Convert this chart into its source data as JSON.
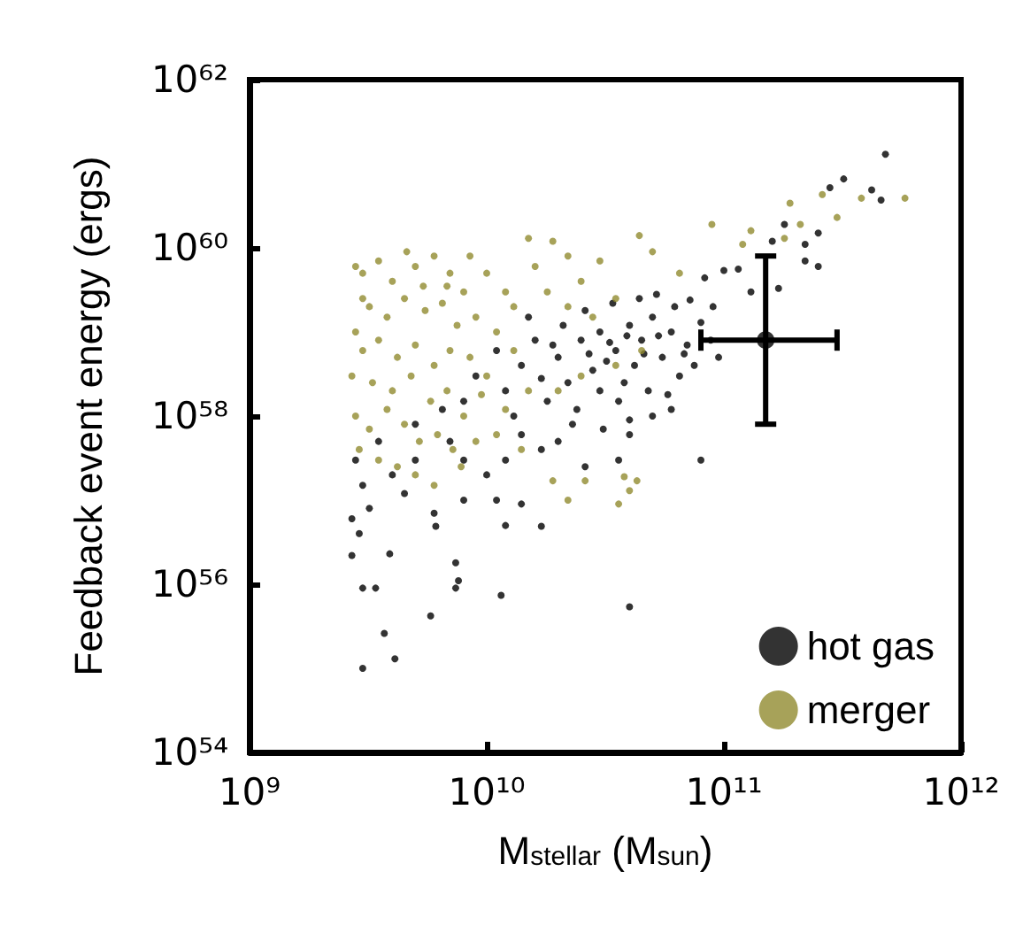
{
  "chart_data": {
    "type": "scatter",
    "xlabel": "M$_{stellar}$ (M$_{sun}$)",
    "ylabel": "Feedback event energy (ergs)",
    "log": "xy",
    "marker": "circle",
    "legend": "bottom right",
    "grid": false,
    "xlim": [
      1000000000.0,
      1000000000000.0
    ],
    "xticks": [
      {
        "value": 1000000000.0,
        "label": "10⁹"
      },
      {
        "value": 10000000000.0,
        "label": "10¹⁰"
      },
      {
        "value": 100000000000.0,
        "label": "10¹¹"
      },
      {
        "value": 1000000000000.0,
        "label": "10¹²"
      }
    ],
    "ylim": [
      1e+54,
      1e+62
    ],
    "yticks": [
      {
        "value": 1e+54,
        "label": "10⁵⁴"
      },
      {
        "value": 1e+56,
        "label": "10⁵⁶"
      },
      {
        "value": 1e+58,
        "label": "10⁵⁸"
      },
      {
        "value": 1e+60,
        "label": "10⁶⁰"
      },
      {
        "value": 1e+62,
        "label": "10⁶²"
      }
    ],
    "series": [
      {
        "name": "hot gas",
        "color": "#000000",
        "x": [
          480000000000.0,
          320000000000.0,
          420000000000.0,
          460000000000.0,
          280000000000.0,
          180000000000.0,
          220000000000.0,
          250000000000.0,
          250000000000.0,
          220000000000.0,
          160000000000.0,
          115000000000.0,
          100000000000.0,
          83000000000.0,
          170000000000.0,
          130000000000.0,
          90000000000.0,
          20000000000.0,
          25000000000.0,
          30000000000.0,
          35000000000.0,
          40000000000.0,
          45000000000.0,
          50000000000.0,
          60000000000.0,
          70000000000.0,
          80000000000.0,
          22000000000.0,
          28000000000.0,
          32000000000.0,
          38000000000.0,
          42000000000.0,
          55000000000.0,
          65000000000.0,
          75000000000.0,
          18000000000.0,
          24000000000.0,
          30000000000.0,
          36000000000.0,
          48000000000.0,
          58000000000.0,
          26000000000.0,
          34000000000.0,
          44000000000.0,
          52000000000.0,
          62000000000.0,
          72000000000.0,
          88000000000.0,
          95000000000.0,
          16000000000.0,
          14000000000.0,
          12000000000.0,
          17000000000.0,
          21000000000.0,
          27000000000.0,
          33000000000.0,
          39000000000.0,
          46000000000.0,
          53000000000.0,
          68000000000.0,
          19000000000.0,
          23000000000.0,
          31000000000.0,
          40000000000.0,
          50000000000.0,
          60000000000.0,
          13000000000.0,
          15000000000.0,
          11000000000.0,
          9000000000.0,
          8000000000.0,
          7000000000.0,
          5000000000.0,
          4000000000.0,
          3000000000.0,
          3200000000.0,
          2700000000.0,
          2900000000.0,
          4500000000.0,
          6000000000.0,
          8000000000.0,
          10000000000.0,
          12000000000.0,
          14000000000.0,
          17000000000.0,
          20000000000.0,
          26000000000.0,
          36000000000.0,
          40000000000.0,
          11000000000.0,
          12000000000.0,
          14000000000.0,
          17000000000.0,
          6100000000.0,
          3900000000.0,
          2700000000.0,
          7400000000.0,
          7600000000.0,
          7400000000.0,
          11500000000.0,
          3400000000.0,
          3000000000.0,
          3700000000.0,
          4100000000.0,
          3000000000.0,
          5800000000.0,
          40000000000.0,
          80000000000.0,
          2800000000.0,
          3500000000.0,
          5000000000.0,
          6500000000.0,
          8000000000.0
        ],
        "values": [
          1.3e+61,
          6.6e+60,
          4.9e+60,
          3.7e+60,
          5.2e+60,
          1.9e+60,
          1.1e+60,
          1.5e+60,
          6e+59,
          7e+59,
          1.2e+60,
          5.6e+59,
          5.4e+59,
          4.4e+59,
          3.3e+59,
          3e+59,
          2e+59,
          5e+58,
          8e+58,
          1e+59,
          6e+58,
          1.2e+59,
          8e+58,
          1.5e+59,
          1e+59,
          7e+58,
          1.3e+59,
          2.5e+58,
          3.5e+58,
          4.5e+58,
          2.5e+58,
          4e+58,
          5e+58,
          3e+58,
          4e+58,
          1.5e+58,
          1.2e+58,
          2e+58,
          1.5e+58,
          2e+58,
          1.8e+58,
          1.8e+59,
          2.2e+59,
          2.5e+59,
          2.8e+59,
          2e+59,
          2.4e+59,
          8e+58,
          5e+58,
          8e+58,
          4e+58,
          2e+58,
          2.8e+58,
          1.2e+59,
          5.5e+58,
          7.5e+58,
          9e+58,
          5.5e+58,
          9e+58,
          5.5e+58,
          7e+58,
          8e+57,
          7e+57,
          9e+57,
          1e+58,
          1.2e+58,
          1e+58,
          1.5e+59,
          6e+58,
          3e+58,
          1.5e+58,
          5e+57,
          3e+57,
          2e+57,
          1.5e+57,
          8e+56,
          6e+56,
          4e+56,
          1.2e+57,
          7e+56,
          1e+57,
          2e+57,
          3e+57,
          6e+57,
          4e+57,
          5e+57,
          2.5e+57,
          3e+57,
          6e+57,
          1e+57,
          5e+56,
          9e+56,
          4.9e+56,
          4.9e+56,
          2.3e+56,
          2.2e+56,
          1.8e+56,
          1.1e+56,
          9e+55,
          7.4e+55,
          9e+55,
          9e+55,
          2.6e+55,
          1.3e+55,
          1e+55,
          4.2e+55,
          5.4e+55,
          3e+57,
          3e+57,
          5e+57,
          8e+57,
          1.2e+58,
          3e+57
        ]
      },
      {
        "name": "merger",
        "color": "#918b2f",
        "x": [
          580000000000.0,
          380000000000.0,
          260000000000.0,
          300000000000.0,
          190000000000.0,
          210000000000.0,
          130000000000.0,
          89000000000.0,
          120000000000.0,
          180000000000.0,
          44000000000.0,
          19000000000.0,
          15000000000.0,
          22000000000.0,
          30000000000.0,
          50000000000.0,
          65000000000.0,
          25000000000.0,
          16000000000.0,
          3500000000.0,
          3000000000.0,
          4000000000.0,
          5000000000.0,
          6000000000.0,
          7000000000.0,
          8000000000.0,
          10000000000.0,
          12000000000.0,
          3200000000.0,
          3800000000.0,
          4500000000.0,
          5500000000.0,
          6500000000.0,
          7500000000.0,
          9000000000.0,
          11000000000.0,
          2800000000.0,
          3000000000.0,
          3500000000.0,
          4200000000.0,
          5000000000.0,
          6000000000.0,
          7000000000.0,
          8500000000.0,
          10000000000.0,
          13000000000.0,
          2700000000.0,
          3300000000.0,
          4000000000.0,
          4800000000.0,
          5800000000.0,
          6800000000.0,
          8000000000.0,
          9500000000.0,
          12000000000.0,
          15000000000.0,
          2800000000.0,
          3200000000.0,
          3800000000.0,
          4500000000.0,
          5200000000.0,
          6200000000.0,
          7200000000.0,
          9000000000.0,
          11000000000.0,
          14000000000.0,
          2900000000.0,
          3500000000.0,
          4200000000.0,
          5000000000.0,
          6000000000.0,
          7800000000.0,
          3000000000.0,
          2800000000.0,
          4600000000.0,
          5400000000.0,
          6800000000.0,
          8500000000.0,
          13000000000.0,
          18000000000.0,
          22000000000.0,
          28000000000.0,
          35000000000.0,
          19000000000.0,
          22000000000.0,
          26000000000.0,
          38000000000.0,
          43000000000.0,
          36000000000.0,
          40000000000.0,
          20000000000.0,
          25000000000.0,
          35000000000.0,
          45000000000.0
        ],
        "values": [
          3.9e+60,
          3.9e+60,
          4.3e+60,
          2.3e+60,
          3.4e+60,
          1.9e+60,
          1.6e+60,
          1.9e+60,
          1.1e+60,
          1.3e+60,
          1.4e+60,
          1.2e+60,
          1.3e+60,
          8e+59,
          7e+59,
          9e+59,
          5e+59,
          4e+59,
          6e+59,
          7e+59,
          5e+59,
          4e+59,
          6e+59,
          8e+59,
          5e+59,
          3e+59,
          5e+59,
          3e+59,
          2e+59,
          1.5e+59,
          2.5e+59,
          1.8e+59,
          2.2e+59,
          1.2e+59,
          1.5e+59,
          1e+59,
          1e+59,
          6e+58,
          8e+58,
          5e+58,
          7e+58,
          4e+58,
          6e+58,
          5e+58,
          3e+58,
          6e+58,
          3e+58,
          2.5e+58,
          2e+58,
          3e+58,
          1.5e+58,
          2e+58,
          1e+58,
          1.8e+58,
          1.2e+58,
          2e+58,
          1e+58,
          7e+57,
          1.2e+58,
          8e+57,
          5e+57,
          6e+57,
          4e+57,
          5e+57,
          6e+57,
          4e+57,
          4e+57,
          3e+57,
          2.5e+57,
          2e+57,
          1.5e+57,
          2.5e+57,
          2.5e+59,
          6e+59,
          9e+59,
          3.5e+59,
          3.5e+59,
          8e+59,
          2e+59,
          3e+59,
          2e+59,
          1.5e+59,
          2.5e+59,
          1.7e+57,
          1e+57,
          1.7e+57,
          1.9e+57,
          1.7e+57,
          9e+56,
          1.3e+57,
          2e+58,
          3e+58,
          4e+58,
          6e+58
        ]
      },
      {
        "color": "#000000",
        "x": [
          150000000000.0
        ],
        "values": [
          8e+58
        ],
        "errors": [
          [
            8e+57,
            8e+59
          ]
        ],
        "xerrors": [
          [
            80000000000.0,
            300000000000.0
          ]
        ]
      }
    ]
  }
}
